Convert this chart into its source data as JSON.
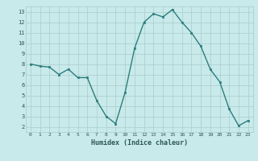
{
  "x": [
    0,
    1,
    2,
    3,
    4,
    5,
    6,
    7,
    8,
    9,
    10,
    11,
    12,
    13,
    14,
    15,
    16,
    17,
    18,
    19,
    20,
    21,
    22,
    23
  ],
  "y": [
    8.0,
    7.8,
    7.7,
    7.0,
    7.5,
    6.7,
    6.7,
    4.5,
    3.0,
    2.3,
    5.3,
    9.5,
    12.0,
    12.8,
    12.5,
    13.2,
    12.0,
    11.0,
    9.7,
    7.5,
    6.3,
    3.7,
    2.1,
    2.6
  ],
  "xlabel": "Humidex (Indice chaleur)",
  "ylim": [
    1.5,
    13.5
  ],
  "xlim": [
    -0.5,
    23.5
  ],
  "yticks": [
    2,
    3,
    4,
    5,
    6,
    7,
    8,
    9,
    10,
    11,
    12,
    13
  ],
  "xticks": [
    0,
    1,
    2,
    3,
    4,
    5,
    6,
    7,
    8,
    9,
    10,
    11,
    12,
    13,
    14,
    15,
    16,
    17,
    18,
    19,
    20,
    21,
    22,
    23
  ],
  "line_color": "#2d7d7d",
  "marker_color": "#2d7d7d",
  "bg_color": "#c8eaea",
  "grid_color": "#b0d0d0",
  "tick_color": "#2d5555"
}
